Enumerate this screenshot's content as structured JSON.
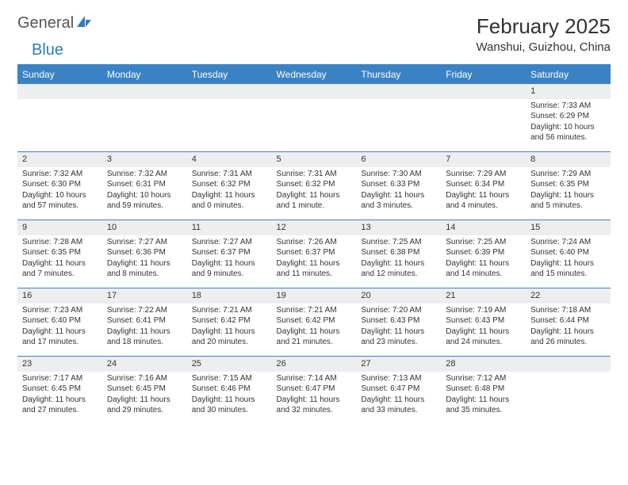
{
  "brand": {
    "part1": "General",
    "part2": "Blue"
  },
  "title": "February 2025",
  "location": "Wanshui, Guizhou, China",
  "colors": {
    "header_bg": "#3b82c4",
    "header_text": "#ffffff",
    "daynum_bg": "#eceef0",
    "border": "#3b82c4",
    "text": "#333333",
    "brand_blue": "#2b7bbf"
  },
  "day_headers": [
    "Sunday",
    "Monday",
    "Tuesday",
    "Wednesday",
    "Thursday",
    "Friday",
    "Saturday"
  ],
  "weeks": [
    [
      null,
      null,
      null,
      null,
      null,
      null,
      {
        "d": "1",
        "sr": "Sunrise: 7:33 AM",
        "ss": "Sunset: 6:29 PM",
        "dl": "Daylight: 10 hours and 56 minutes."
      }
    ],
    [
      {
        "d": "2",
        "sr": "Sunrise: 7:32 AM",
        "ss": "Sunset: 6:30 PM",
        "dl": "Daylight: 10 hours and 57 minutes."
      },
      {
        "d": "3",
        "sr": "Sunrise: 7:32 AM",
        "ss": "Sunset: 6:31 PM",
        "dl": "Daylight: 10 hours and 59 minutes."
      },
      {
        "d": "4",
        "sr": "Sunrise: 7:31 AM",
        "ss": "Sunset: 6:32 PM",
        "dl": "Daylight: 11 hours and 0 minutes."
      },
      {
        "d": "5",
        "sr": "Sunrise: 7:31 AM",
        "ss": "Sunset: 6:32 PM",
        "dl": "Daylight: 11 hours and 1 minute."
      },
      {
        "d": "6",
        "sr": "Sunrise: 7:30 AM",
        "ss": "Sunset: 6:33 PM",
        "dl": "Daylight: 11 hours and 3 minutes."
      },
      {
        "d": "7",
        "sr": "Sunrise: 7:29 AM",
        "ss": "Sunset: 6:34 PM",
        "dl": "Daylight: 11 hours and 4 minutes."
      },
      {
        "d": "8",
        "sr": "Sunrise: 7:29 AM",
        "ss": "Sunset: 6:35 PM",
        "dl": "Daylight: 11 hours and 5 minutes."
      }
    ],
    [
      {
        "d": "9",
        "sr": "Sunrise: 7:28 AM",
        "ss": "Sunset: 6:35 PM",
        "dl": "Daylight: 11 hours and 7 minutes."
      },
      {
        "d": "10",
        "sr": "Sunrise: 7:27 AM",
        "ss": "Sunset: 6:36 PM",
        "dl": "Daylight: 11 hours and 8 minutes."
      },
      {
        "d": "11",
        "sr": "Sunrise: 7:27 AM",
        "ss": "Sunset: 6:37 PM",
        "dl": "Daylight: 11 hours and 9 minutes."
      },
      {
        "d": "12",
        "sr": "Sunrise: 7:26 AM",
        "ss": "Sunset: 6:37 PM",
        "dl": "Daylight: 11 hours and 11 minutes."
      },
      {
        "d": "13",
        "sr": "Sunrise: 7:25 AM",
        "ss": "Sunset: 6:38 PM",
        "dl": "Daylight: 11 hours and 12 minutes."
      },
      {
        "d": "14",
        "sr": "Sunrise: 7:25 AM",
        "ss": "Sunset: 6:39 PM",
        "dl": "Daylight: 11 hours and 14 minutes."
      },
      {
        "d": "15",
        "sr": "Sunrise: 7:24 AM",
        "ss": "Sunset: 6:40 PM",
        "dl": "Daylight: 11 hours and 15 minutes."
      }
    ],
    [
      {
        "d": "16",
        "sr": "Sunrise: 7:23 AM",
        "ss": "Sunset: 6:40 PM",
        "dl": "Daylight: 11 hours and 17 minutes."
      },
      {
        "d": "17",
        "sr": "Sunrise: 7:22 AM",
        "ss": "Sunset: 6:41 PM",
        "dl": "Daylight: 11 hours and 18 minutes."
      },
      {
        "d": "18",
        "sr": "Sunrise: 7:21 AM",
        "ss": "Sunset: 6:42 PM",
        "dl": "Daylight: 11 hours and 20 minutes."
      },
      {
        "d": "19",
        "sr": "Sunrise: 7:21 AM",
        "ss": "Sunset: 6:42 PM",
        "dl": "Daylight: 11 hours and 21 minutes."
      },
      {
        "d": "20",
        "sr": "Sunrise: 7:20 AM",
        "ss": "Sunset: 6:43 PM",
        "dl": "Daylight: 11 hours and 23 minutes."
      },
      {
        "d": "21",
        "sr": "Sunrise: 7:19 AM",
        "ss": "Sunset: 6:43 PM",
        "dl": "Daylight: 11 hours and 24 minutes."
      },
      {
        "d": "22",
        "sr": "Sunrise: 7:18 AM",
        "ss": "Sunset: 6:44 PM",
        "dl": "Daylight: 11 hours and 26 minutes."
      }
    ],
    [
      {
        "d": "23",
        "sr": "Sunrise: 7:17 AM",
        "ss": "Sunset: 6:45 PM",
        "dl": "Daylight: 11 hours and 27 minutes."
      },
      {
        "d": "24",
        "sr": "Sunrise: 7:16 AM",
        "ss": "Sunset: 6:45 PM",
        "dl": "Daylight: 11 hours and 29 minutes."
      },
      {
        "d": "25",
        "sr": "Sunrise: 7:15 AM",
        "ss": "Sunset: 6:46 PM",
        "dl": "Daylight: 11 hours and 30 minutes."
      },
      {
        "d": "26",
        "sr": "Sunrise: 7:14 AM",
        "ss": "Sunset: 6:47 PM",
        "dl": "Daylight: 11 hours and 32 minutes."
      },
      {
        "d": "27",
        "sr": "Sunrise: 7:13 AM",
        "ss": "Sunset: 6:47 PM",
        "dl": "Daylight: 11 hours and 33 minutes."
      },
      {
        "d": "28",
        "sr": "Sunrise: 7:12 AM",
        "ss": "Sunset: 6:48 PM",
        "dl": "Daylight: 11 hours and 35 minutes."
      },
      null
    ]
  ]
}
